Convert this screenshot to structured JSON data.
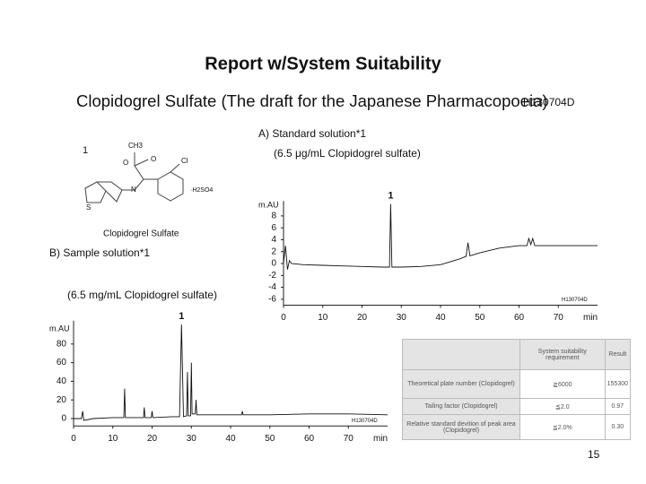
{
  "header": {
    "title": "Report w/System Suitability",
    "subtitle": "Clopidogrel Sulfate (The draft for the Japanese Pharmacopoeia)",
    "code": "H130704D"
  },
  "structure": {
    "number": "1",
    "name": "Clopidogrel Sulfate",
    "atoms": [
      "CH3",
      "O",
      "O",
      "Cl",
      "N",
      "S",
      "·H2SO4"
    ]
  },
  "chart_data": [
    {
      "type": "line",
      "title": "A) Standard solution*1",
      "subtitle": "(6.5 μg/mL Clopidogrel sulfate)",
      "ylabel": "m.AU",
      "xlabel": "min",
      "annotation": "1",
      "watermark": "H130704D",
      "xlim": [
        0,
        80
      ],
      "ylim": [
        -7,
        10.5
      ],
      "xticks": [
        0,
        10,
        20,
        30,
        40,
        50,
        60,
        70
      ],
      "yticks": [
        8,
        6,
        4,
        2,
        0,
        -2,
        -4,
        -6
      ],
      "series": [
        {
          "color": "#111111",
          "x": [
            0,
            0.5,
            1,
            1.5,
            2,
            5,
            10,
            15,
            20,
            25,
            27,
            27.3,
            27.6,
            28,
            30,
            35,
            40,
            45,
            46.5,
            47,
            47.5,
            50,
            55,
            60,
            62,
            62.5,
            63,
            63.5,
            64,
            65,
            70,
            80
          ],
          "values": [
            0,
            3,
            -1,
            0.5,
            0,
            -0.2,
            -0.3,
            -0.4,
            -0.5,
            -0.6,
            -0.6,
            10,
            -0.6,
            -0.6,
            -0.6,
            -0.5,
            -0.2,
            0.8,
            1.2,
            3.5,
            1.3,
            1.8,
            2.6,
            3,
            3,
            4.2,
            3.2,
            4.2,
            3,
            3,
            3,
            3
          ]
        }
      ]
    },
    {
      "type": "line",
      "title": "B) Sample solution*1",
      "subtitle": "(6.5 mg/mL Clopidogrel sulfate)",
      "ylabel": "m.AU",
      "xlabel": "min",
      "annotation": "1",
      "watermark": "H130704D",
      "xlim": [
        0,
        80
      ],
      "ylim": [
        -8,
        105
      ],
      "xticks": [
        0,
        10,
        20,
        30,
        40,
        50,
        60,
        70
      ],
      "yticks": [
        80,
        60,
        40,
        20,
        0
      ],
      "series": [
        {
          "color": "#111111",
          "x": [
            0,
            2,
            2.3,
            2.6,
            5,
            10,
            12.8,
            13,
            13.2,
            17.8,
            18,
            18.2,
            19.8,
            20,
            20.2,
            25,
            27,
            27.5,
            28,
            28.8,
            29,
            29.2,
            29.8,
            30,
            30.2,
            31,
            31.2,
            31.4,
            35,
            42.8,
            43,
            43.2,
            50,
            60,
            70,
            80
          ],
          "values": [
            0,
            0,
            8,
            -2,
            0,
            1,
            1,
            32,
            1,
            1,
            12,
            1,
            1,
            8,
            1,
            2,
            2,
            101,
            2,
            3,
            50,
            3,
            3,
            60,
            5,
            5,
            20,
            4,
            4,
            4,
            8,
            4,
            4,
            5,
            5,
            4
          ]
        }
      ]
    }
  ],
  "table": {
    "header": [
      "",
      "System suitability requirement",
      "Result"
    ],
    "rows": [
      [
        "Theoretical plate number (Clopidogrel)",
        "≧6000",
        "155300"
      ],
      [
        "Tailing factor (Clopidogrel)",
        "≦2.0",
        "0.97"
      ],
      [
        "Relative standard devition of peak area (Clopidogrel)",
        "≦2.0%",
        "0.30"
      ]
    ]
  },
  "page_number": "15"
}
